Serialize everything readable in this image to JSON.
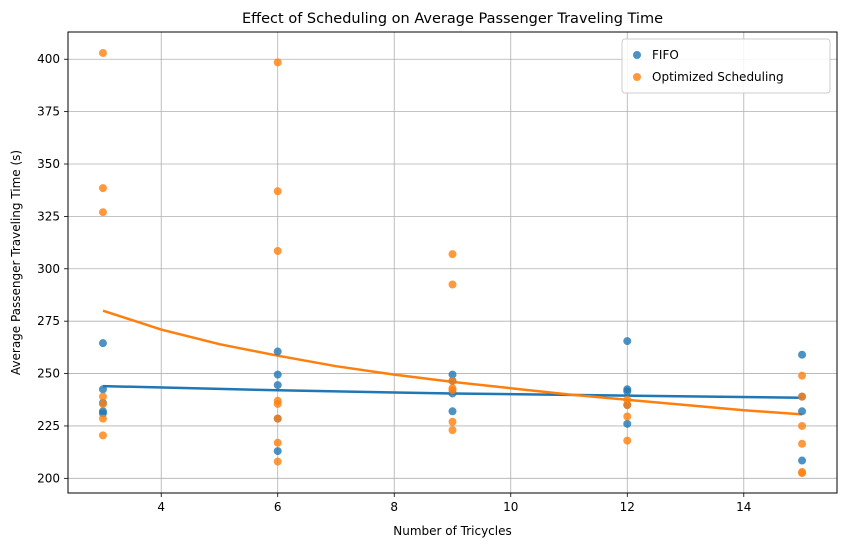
{
  "chart_data": {
    "type": "scatter",
    "title": "Effect of Scheduling on Average Passenger Traveling Time",
    "xlabel": "Number of Tricycles",
    "ylabel": "Average Passenger Traveling Time (s)",
    "xlim": [
      2.4,
      15.6
    ],
    "ylim": [
      193,
      413
    ],
    "x_ticks": [
      4,
      6,
      8,
      10,
      12,
      14
    ],
    "y_ticks": [
      200,
      225,
      250,
      275,
      300,
      325,
      350,
      375,
      400
    ],
    "grid": true,
    "legend_position": "top-right",
    "series": [
      {
        "name": "FIFO",
        "color": "#1f77b4",
        "points": [
          [
            3,
            264.5
          ],
          [
            3,
            242.5
          ],
          [
            3,
            236
          ],
          [
            3,
            232
          ],
          [
            3,
            231
          ],
          [
            6,
            260.5
          ],
          [
            6,
            249.5
          ],
          [
            6,
            244.5
          ],
          [
            6,
            228.5
          ],
          [
            6,
            213
          ],
          [
            9,
            249.5
          ],
          [
            9,
            246.5
          ],
          [
            9,
            240.5
          ],
          [
            9,
            232
          ],
          [
            12,
            265.5
          ],
          [
            12,
            242.5
          ],
          [
            12,
            241.5
          ],
          [
            12,
            235
          ],
          [
            12,
            226
          ],
          [
            15,
            259
          ],
          [
            15,
            239
          ],
          [
            15,
            232
          ],
          [
            15,
            208.5
          ]
        ],
        "trend": [
          [
            3,
            244
          ],
          [
            6,
            242
          ],
          [
            9,
            240.5
          ],
          [
            12,
            239.5
          ],
          [
            15,
            238.5
          ]
        ]
      },
      {
        "name": "Optimized Scheduling",
        "color": "#ff7f0e",
        "points": [
          [
            3,
            403
          ],
          [
            3,
            338.5
          ],
          [
            3,
            327
          ],
          [
            3,
            239
          ],
          [
            3,
            235.5
          ],
          [
            3,
            228.5
          ],
          [
            3,
            220.5
          ],
          [
            6,
            398.5
          ],
          [
            6,
            337
          ],
          [
            6,
            308.5
          ],
          [
            6,
            237
          ],
          [
            6,
            235.5
          ],
          [
            6,
            228.5
          ],
          [
            6,
            217
          ],
          [
            6,
            208
          ],
          [
            9,
            307
          ],
          [
            9,
            292.5
          ],
          [
            9,
            246.5
          ],
          [
            9,
            243
          ],
          [
            9,
            242
          ],
          [
            9,
            227
          ],
          [
            9,
            223
          ],
          [
            12,
            237.5
          ],
          [
            12,
            235
          ],
          [
            12,
            229.5
          ],
          [
            12,
            218
          ],
          [
            15,
            249
          ],
          [
            15,
            239
          ],
          [
            15,
            225
          ],
          [
            15,
            216.5
          ],
          [
            15,
            203
          ],
          [
            15,
            202.5
          ]
        ],
        "trend": [
          [
            3,
            280
          ],
          [
            4,
            271
          ],
          [
            5,
            264
          ],
          [
            6,
            258.5
          ],
          [
            7,
            253.5
          ],
          [
            8,
            249.5
          ],
          [
            9,
            246
          ],
          [
            10,
            243
          ],
          [
            11,
            240
          ],
          [
            12,
            237.5
          ],
          [
            13,
            235
          ],
          [
            14,
            232.5
          ],
          [
            15,
            230.5
          ]
        ]
      }
    ]
  }
}
